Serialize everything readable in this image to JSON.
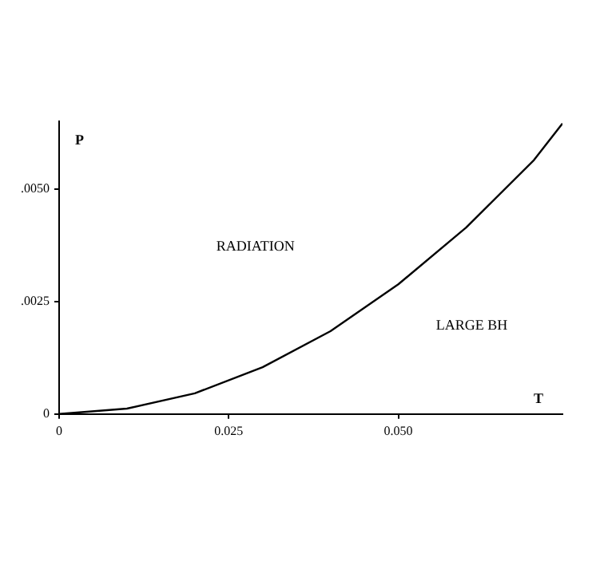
{
  "chart_data": {
    "type": "line",
    "xlabel": "T",
    "ylabel": "P",
    "x": [
      0,
      0.01,
      0.02,
      0.03,
      0.04,
      0.05,
      0.06,
      0.07,
      0.0742
    ],
    "series": [
      {
        "color": "#000000",
        "values": [
          0,
          0.00012,
          0.00046,
          0.00104,
          0.00184,
          0.00288,
          0.00414,
          0.00564,
          0.00645
        ]
      }
    ],
    "xlim": [
      0,
      0.0742
    ],
    "xticks": [
      0,
      0.025,
      {
        "value": 0.05,
        "label": "0.050"
      }
    ],
    "ylim": [
      0,
      0.0065
    ],
    "yticks": [
      0,
      {
        "value": 0.0025,
        "label": ".0025"
      },
      {
        "value": 0.005,
        "label": ".0050"
      }
    ],
    "annotations": [
      "RADIATION",
      "LARGE BH"
    ],
    "grid": false,
    "legend": false,
    "marker": "none",
    "line_style": "solid"
  }
}
